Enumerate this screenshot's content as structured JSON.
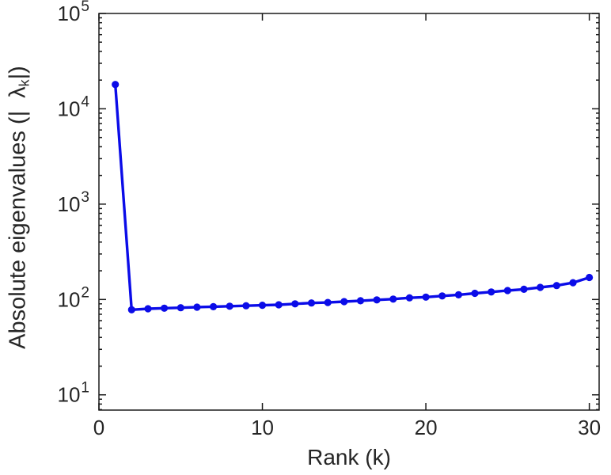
{
  "chart_data": {
    "type": "line",
    "title": "",
    "xlabel": "Rank (k)",
    "ylabel": {
      "prefix": "Absolute eigenvalues (|",
      "symbol": "λ",
      "subscript": "k",
      "suffix": "|)"
    },
    "x": [
      1,
      2,
      3,
      4,
      5,
      6,
      7,
      8,
      9,
      10,
      11,
      12,
      13,
      14,
      15,
      16,
      17,
      18,
      19,
      20,
      21,
      22,
      23,
      24,
      25,
      26,
      27,
      28,
      29,
      30
    ],
    "series": [
      {
        "name": "absolute-eigenvalues",
        "values": [
          18000,
          78,
          80,
          81,
          82,
          83,
          84,
          85,
          86,
          87,
          88,
          90,
          92,
          93,
          95,
          97,
          99,
          101,
          104,
          106,
          109,
          112,
          116,
          120,
          124,
          128,
          134,
          140,
          150,
          170
        ]
      }
    ],
    "x_ticks": [
      0,
      10,
      20,
      30
    ],
    "y_tick_exponents": [
      1,
      2,
      3,
      4,
      5
    ],
    "y_tick_base": "10",
    "xlim": [
      0,
      30.6
    ],
    "ylim_exponents": [
      0.84,
      5
    ],
    "y_scale": "log",
    "grid": false,
    "legend": null,
    "line_color": "#0b0ce8",
    "marker": "circle",
    "axis_color": "#1a1a1a",
    "tick_label_color": "#262626"
  }
}
